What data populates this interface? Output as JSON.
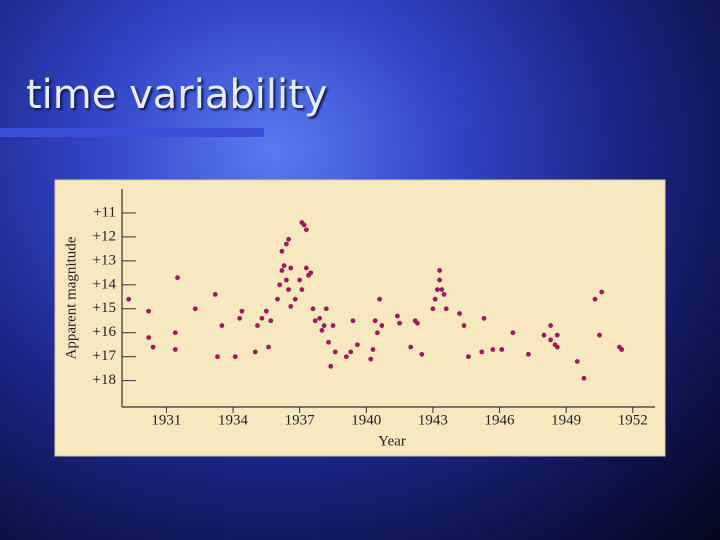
{
  "slide": {
    "title": "time variability"
  },
  "chart_data": {
    "type": "scatter",
    "x_label": "Year",
    "y_label": "Apparent magnitude",
    "color": "#9b1b5e",
    "xlim": [
      1929,
      1953
    ],
    "ylim": [
      10,
      19.1
    ],
    "y_inverted": true,
    "xticks": [
      1931,
      1934,
      1937,
      1940,
      1943,
      1946,
      1949,
      1952
    ],
    "yticks": [
      {
        "value": 11,
        "label": "+11"
      },
      {
        "value": 12,
        "label": "+12"
      },
      {
        "value": 13,
        "label": "+13"
      },
      {
        "value": 14,
        "label": "+14"
      },
      {
        "value": 15,
        "label": "+15"
      },
      {
        "value": 16,
        "label": "+16"
      },
      {
        "value": 17,
        "label": "+17"
      },
      {
        "value": 18,
        "label": "+18"
      }
    ],
    "x": [
      1929.3,
      1930.2,
      1930.2,
      1930.4,
      1931.4,
      1931.5,
      1931.4,
      1932.3,
      1933.2,
      1933.3,
      1933.5,
      1934.1,
      1934.3,
      1934.4,
      1935.0,
      1935.1,
      1935.3,
      1935.5,
      1935.6,
      1935.7,
      1936.0,
      1936.1,
      1936.2,
      1936.2,
      1936.3,
      1936.4,
      1936.5,
      1936.4,
      1936.5,
      1936.6,
      1936.6,
      1936.8,
      1937.0,
      1937.1,
      1937.1,
      1937.2,
      1937.3,
      1937.3,
      1937.4,
      1937.5,
      1937.6,
      1937.7,
      1937.9,
      1938.0,
      1938.1,
      1938.2,
      1938.3,
      1938.4,
      1938.5,
      1938.6,
      1939.1,
      1939.3,
      1939.4,
      1939.6,
      1940.2,
      1940.3,
      1940.4,
      1940.5,
      1940.6,
      1940.7,
      1941.4,
      1941.5,
      1942.0,
      1942.2,
      1942.3,
      1942.5,
      1943.0,
      1943.1,
      1943.2,
      1943.3,
      1943.3,
      1943.4,
      1943.5,
      1943.6,
      1944.2,
      1944.4,
      1944.6,
      1945.2,
      1945.3,
      1945.7,
      1946.1,
      1946.6,
      1947.3,
      1948.0,
      1948.3,
      1948.3,
      1948.5,
      1948.6,
      1948.6,
      1949.5,
      1949.8,
      1950.3,
      1950.5,
      1950.6,
      1951.4,
      1951.5
    ],
    "values": [
      14.6,
      15.1,
      16.2,
      16.6,
      16.7,
      13.7,
      16.0,
      15.0,
      14.4,
      17.0,
      15.7,
      17.0,
      15.4,
      15.1,
      16.8,
      15.7,
      15.4,
      15.1,
      16.6,
      15.5,
      14.6,
      14.0,
      13.4,
      12.6,
      13.2,
      12.3,
      12.1,
      13.8,
      14.2,
      13.3,
      14.9,
      14.6,
      13.8,
      14.2,
      11.4,
      11.5,
      11.7,
      13.3,
      13.6,
      13.5,
      15.0,
      15.5,
      15.4,
      15.9,
      15.7,
      15.0,
      16.4,
      17.4,
      15.7,
      16.8,
      17.0,
      16.8,
      15.5,
      16.5,
      17.1,
      16.7,
      15.5,
      16.0,
      14.6,
      15.7,
      15.3,
      15.6,
      16.6,
      15.5,
      15.6,
      16.9,
      15.0,
      14.6,
      14.2,
      13.8,
      13.4,
      14.2,
      14.4,
      15.0,
      15.2,
      15.7,
      17.0,
      16.8,
      15.4,
      16.7,
      16.7,
      16.0,
      16.9,
      16.1,
      15.7,
      16.3,
      16.5,
      16.1,
      16.6,
      17.2,
      17.9,
      14.6,
      16.1,
      14.3,
      16.6,
      16.7
    ]
  }
}
